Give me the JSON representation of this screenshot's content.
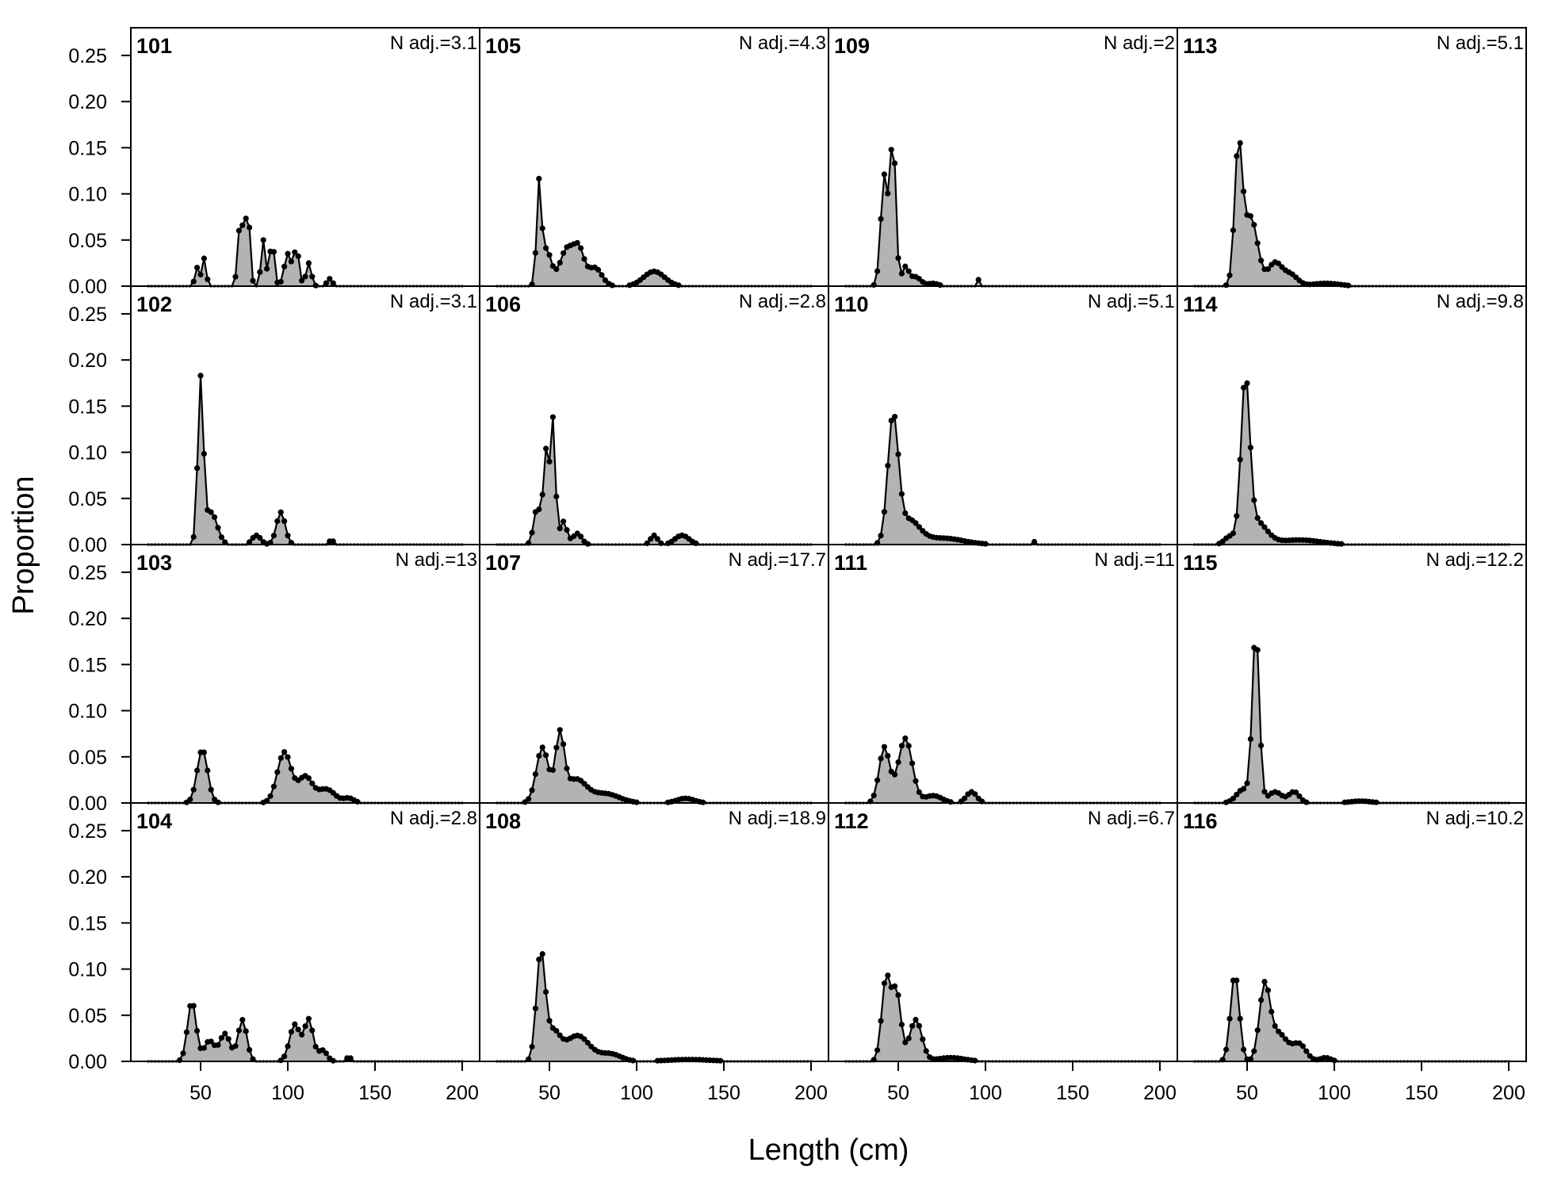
{
  "chart_data": {
    "type": "area",
    "title": "",
    "xlabel": "Length (cm)",
    "ylabel": "Proportion",
    "xlim": [
      10,
      210
    ],
    "ylim": [
      0,
      0.28
    ],
    "x_ticks": [
      50,
      100,
      150,
      200
    ],
    "x_tick_labels": [
      "50",
      "100",
      "150",
      "200"
    ],
    "y_ticks": [
      0,
      0.05,
      0.1,
      0.15,
      0.2,
      0.25
    ],
    "y_tick_labels": [
      "0.00",
      "0.05",
      "0.10",
      "0.15",
      "0.20",
      "0.25"
    ],
    "x_range": [
      20,
      200
    ],
    "bin_width": 2,
    "layout": {
      "rows": 4,
      "columns": 4,
      "fill_order": "column-major"
    },
    "panels": [
      {
        "id": "101",
        "n_adj_label": "N adj.=3.1",
        "peaks": [
          {
            "mu": 48,
            "sd": 1.2,
            "h": 0.02
          },
          {
            "mu": 52,
            "sd": 1.2,
            "h": 0.03
          },
          {
            "mu": 73,
            "sd": 1.5,
            "h": 0.075
          },
          {
            "mu": 77,
            "sd": 1.3,
            "h": 0.085
          },
          {
            "mu": 86,
            "sd": 1.3,
            "h": 0.05
          },
          {
            "mu": 91,
            "sd": 1.3,
            "h": 0.05
          },
          {
            "mu": 100,
            "sd": 2.0,
            "h": 0.035
          },
          {
            "mu": 105,
            "sd": 1.5,
            "h": 0.04
          },
          {
            "mu": 112,
            "sd": 1.5,
            "h": 0.025
          },
          {
            "mu": 124,
            "sd": 1.5,
            "h": 0.008
          }
        ]
      },
      {
        "id": "102",
        "n_adj_label": "N adj.=3.1",
        "peaks": [
          {
            "mu": 50,
            "sd": 1.6,
            "h": 0.175
          },
          {
            "mu": 56,
            "sd": 3.5,
            "h": 0.035
          },
          {
            "mu": 82,
            "sd": 2.5,
            "h": 0.01
          },
          {
            "mu": 96,
            "sd": 2.5,
            "h": 0.035
          },
          {
            "mu": 125,
            "sd": 1.0,
            "h": 0.006
          }
        ]
      },
      {
        "id": "103",
        "n_adj_label": "N adj.=13",
        "peaks": [
          {
            "mu": 51,
            "sd": 3.0,
            "h": 0.058
          },
          {
            "mu": 98,
            "sd": 4.0,
            "h": 0.055
          },
          {
            "mu": 110,
            "sd": 4.0,
            "h": 0.028
          },
          {
            "mu": 122,
            "sd": 5.0,
            "h": 0.015
          },
          {
            "mu": 135,
            "sd": 3.0,
            "h": 0.005
          }
        ]
      },
      {
        "id": "104",
        "n_adj_label": "N adj.=2.8",
        "peaks": [
          {
            "mu": 45,
            "sd": 2.5,
            "h": 0.065
          },
          {
            "mu": 55,
            "sd": 3.0,
            "h": 0.022
          },
          {
            "mu": 64,
            "sd": 3.0,
            "h": 0.03
          },
          {
            "mu": 74,
            "sd": 2.5,
            "h": 0.045
          },
          {
            "mu": 104,
            "sd": 3.0,
            "h": 0.04
          },
          {
            "mu": 112,
            "sd": 2.5,
            "h": 0.045
          },
          {
            "mu": 120,
            "sd": 2.5,
            "h": 0.012
          },
          {
            "mu": 135,
            "sd": 1.2,
            "h": 0.005
          }
        ]
      },
      {
        "id": "105",
        "n_adj_label": "N adj.=4.3",
        "peaks": [
          {
            "mu": 44,
            "sd": 1.3,
            "h": 0.1
          },
          {
            "mu": 48,
            "sd": 3.0,
            "h": 0.04
          },
          {
            "mu": 60,
            "sd": 4.0,
            "h": 0.04
          },
          {
            "mu": 67,
            "sd": 3.0,
            "h": 0.035
          },
          {
            "mu": 76,
            "sd": 4.0,
            "h": 0.02
          },
          {
            "mu": 110,
            "sd": 6.0,
            "h": 0.016
          }
        ]
      },
      {
        "id": "106",
        "n_adj_label": "N adj.=2.8",
        "peaks": [
          {
            "mu": 43,
            "sd": 2.0,
            "h": 0.04
          },
          {
            "mu": 48,
            "sd": 1.5,
            "h": 0.1
          },
          {
            "mu": 52,
            "sd": 1.4,
            "h": 0.135
          },
          {
            "mu": 58,
            "sd": 2.0,
            "h": 0.025
          },
          {
            "mu": 66,
            "sd": 2.5,
            "h": 0.012
          },
          {
            "mu": 110,
            "sd": 2.0,
            "h": 0.01
          },
          {
            "mu": 126,
            "sd": 4.0,
            "h": 0.01
          }
        ]
      },
      {
        "id": "107",
        "n_adj_label": "N adj.=17.7",
        "peaks": [
          {
            "mu": 46,
            "sd": 3.5,
            "h": 0.06
          },
          {
            "mu": 56,
            "sd": 2.5,
            "h": 0.07
          },
          {
            "mu": 65,
            "sd": 6.0,
            "h": 0.025
          },
          {
            "mu": 82,
            "sd": 8.0,
            "h": 0.01
          },
          {
            "mu": 128,
            "sd": 5.0,
            "h": 0.005
          }
        ]
      },
      {
        "id": "108",
        "n_adj_label": "N adj.=18.9",
        "peaks": [
          {
            "mu": 45,
            "sd": 2.5,
            "h": 0.115
          },
          {
            "mu": 52,
            "sd": 4.0,
            "h": 0.03
          },
          {
            "mu": 66,
            "sd": 7.0,
            "h": 0.028
          },
          {
            "mu": 85,
            "sd": 6.0,
            "h": 0.008
          },
          {
            "mu": 130,
            "sd": 12.0,
            "h": 0.002
          }
        ]
      },
      {
        "id": "109",
        "n_adj_label": "N adj.=2",
        "peaks": [
          {
            "mu": 42,
            "sd": 2.0,
            "h": 0.12
          },
          {
            "mu": 47,
            "sd": 1.6,
            "h": 0.16
          },
          {
            "mu": 54,
            "sd": 2.0,
            "h": 0.02
          },
          {
            "mu": 60,
            "sd": 3.0,
            "h": 0.01
          },
          {
            "mu": 70,
            "sd": 3.0,
            "h": 0.003
          },
          {
            "mu": 96,
            "sd": 0.8,
            "h": 0.007
          }
        ]
      },
      {
        "id": "110",
        "n_adj_label": "N adj.=5.1",
        "peaks": [
          {
            "mu": 47,
            "sd": 3.0,
            "h": 0.135
          },
          {
            "mu": 56,
            "sd": 6.0,
            "h": 0.025
          },
          {
            "mu": 75,
            "sd": 12.0,
            "h": 0.007
          },
          {
            "mu": 128,
            "sd": 1.0,
            "h": 0.003
          }
        ]
      },
      {
        "id": "111",
        "n_adj_label": "N adj.=11",
        "peaks": [
          {
            "mu": 42,
            "sd": 3.0,
            "h": 0.06
          },
          {
            "mu": 54,
            "sd": 4.0,
            "h": 0.07
          },
          {
            "mu": 70,
            "sd": 5.0,
            "h": 0.008
          },
          {
            "mu": 92,
            "sd": 3.0,
            "h": 0.012
          }
        ]
      },
      {
        "id": "112",
        "n_adj_label": "N adj.=6.7",
        "peaks": [
          {
            "mu": 43,
            "sd": 2.5,
            "h": 0.09
          },
          {
            "mu": 49,
            "sd": 2.5,
            "h": 0.075
          },
          {
            "mu": 60,
            "sd": 3.5,
            "h": 0.045
          },
          {
            "mu": 80,
            "sd": 8.0,
            "h": 0.004
          }
        ]
      },
      {
        "id": "113",
        "n_adj_label": "N adj.=5.1",
        "peaks": [
          {
            "mu": 45,
            "sd": 2.2,
            "h": 0.145
          },
          {
            "mu": 52,
            "sd": 4.0,
            "h": 0.075
          },
          {
            "mu": 66,
            "sd": 4.0,
            "h": 0.025
          },
          {
            "mu": 75,
            "sd": 4.0,
            "h": 0.012
          },
          {
            "mu": 95,
            "sd": 8.0,
            "h": 0.003
          }
        ]
      },
      {
        "id": "114",
        "n_adj_label": "N adj.=9.8",
        "peaks": [
          {
            "mu": 49,
            "sd": 2.5,
            "h": 0.17
          },
          {
            "mu": 55,
            "sd": 6.0,
            "h": 0.025
          },
          {
            "mu": 40,
            "sd": 3.0,
            "h": 0.008
          },
          {
            "mu": 80,
            "sd": 12.0,
            "h": 0.005
          }
        ]
      },
      {
        "id": "115",
        "n_adj_label": "N adj.=12.2",
        "peaks": [
          {
            "mu": 55,
            "sd": 2.0,
            "h": 0.185
          },
          {
            "mu": 48,
            "sd": 4.0,
            "h": 0.015
          },
          {
            "mu": 66,
            "sd": 4.0,
            "h": 0.012
          },
          {
            "mu": 77,
            "sd": 3.0,
            "h": 0.012
          },
          {
            "mu": 115,
            "sd": 6.0,
            "h": 0.002
          }
        ]
      },
      {
        "id": "116",
        "n_adj_label": "N adj.=10.2",
        "peaks": [
          {
            "mu": 43,
            "sd": 2.5,
            "h": 0.095
          },
          {
            "mu": 60,
            "sd": 3.0,
            "h": 0.078
          },
          {
            "mu": 68,
            "sd": 5.0,
            "h": 0.03
          },
          {
            "mu": 80,
            "sd": 4.0,
            "h": 0.018
          },
          {
            "mu": 95,
            "sd": 3.0,
            "h": 0.004
          }
        ]
      }
    ]
  }
}
